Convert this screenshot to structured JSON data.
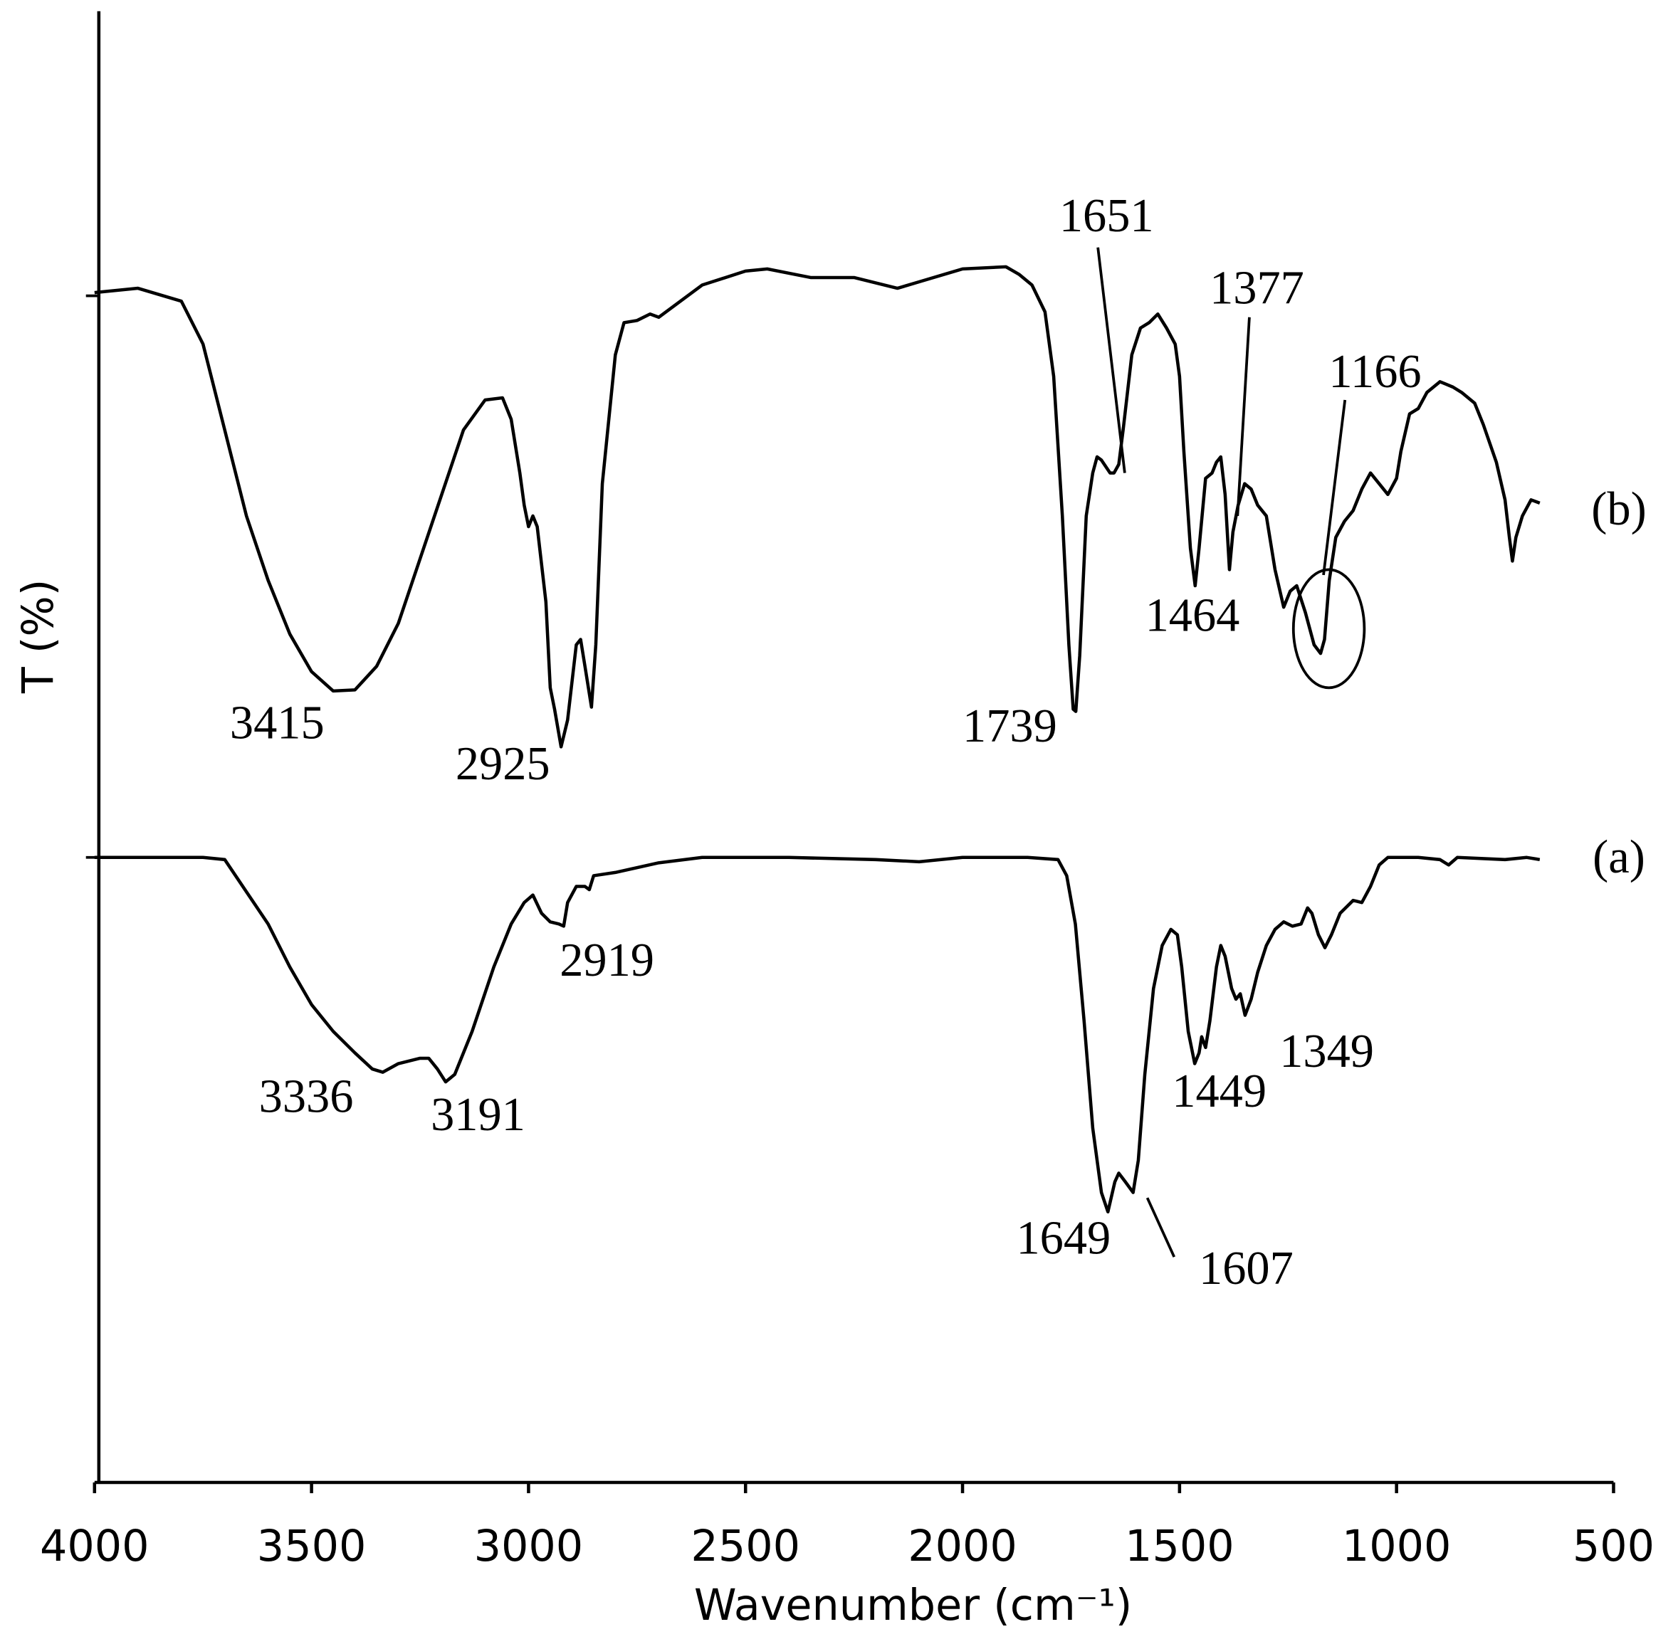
{
  "chart_data": {
    "type": "line",
    "xlabel": "Wavenumber (cm⁻¹)",
    "ylabel": "T (%)",
    "xlim": [
      4000,
      500
    ],
    "xticks": [
      4000,
      3500,
      3000,
      2500,
      2000,
      1500,
      1000,
      500
    ],
    "ylim": [
      0,
      137
    ],
    "color": "#000000",
    "series": [
      {
        "name": "(b)",
        "color": "#000000",
        "x": [
          4000,
          3900,
          3800,
          3750,
          3700,
          3650,
          3600,
          3550,
          3500,
          3450,
          3400,
          3350,
          3300,
          3250,
          3200,
          3150,
          3100,
          3060,
          3040,
          3020,
          3010,
          3000,
          2990,
          2980,
          2960,
          2950,
          2940,
          2925,
          2910,
          2890,
          2880,
          2870,
          2855,
          2845,
          2830,
          2800,
          2780,
          2750,
          2720,
          2700,
          2650,
          2600,
          2500,
          2450,
          2350,
          2250,
          2150,
          2100,
          2000,
          1900,
          1870,
          1840,
          1810,
          1790,
          1770,
          1755,
          1745,
          1739,
          1730,
          1715,
          1700,
          1690,
          1680,
          1660,
          1651,
          1640,
          1630,
          1610,
          1590,
          1570,
          1550,
          1530,
          1510,
          1500,
          1490,
          1475,
          1464,
          1455,
          1440,
          1425,
          1415,
          1405,
          1395,
          1385,
          1377,
          1365,
          1350,
          1335,
          1320,
          1300,
          1280,
          1260,
          1245,
          1230,
          1210,
          1190,
          1175,
          1166,
          1155,
          1140,
          1120,
          1100,
          1080,
          1060,
          1040,
          1020,
          1000,
          990,
          970,
          950,
          930,
          900,
          870,
          850,
          820,
          800,
          770,
          750,
          740,
          733,
          725,
          710,
          690,
          670
        ],
        "values": [
          110.8,
          111.2,
          110,
          106,
          98,
          90,
          84,
          79,
          75.5,
          73.7,
          73.8,
          76,
          80,
          86,
          92,
          98,
          100.8,
          101,
          99,
          94,
          91,
          89,
          90,
          89,
          82,
          74,
          72,
          68.5,
          71,
          78,
          78.5,
          76,
          72.2,
          78,
          93,
          105,
          108,
          108.2,
          108.8,
          108.5,
          110,
          111.5,
          112.8,
          113,
          112.2,
          112.2,
          111.2,
          111.8,
          113,
          113.2,
          112.5,
          111.5,
          109,
          103,
          90,
          78,
          72,
          71.8,
          77,
          90,
          94,
          95.5,
          95.2,
          94,
          94,
          94.8,
          98,
          105,
          107.5,
          108,
          108.8,
          107.5,
          106,
          103,
          96,
          87,
          83.5,
          87,
          93.5,
          94,
          95,
          95.5,
          92,
          85,
          88.5,
          91,
          93,
          92.5,
          91,
          90,
          85,
          81.5,
          83,
          83.5,
          81,
          78,
          77.2,
          78.5,
          84,
          88,
          89.5,
          90.5,
          92.5,
          94,
          93,
          92,
          93.5,
          96,
          99.5,
          100,
          101.5,
          102.5,
          102,
          101.5,
          100.5,
          98.5,
          95,
          91.5,
          88,
          85.8,
          88,
          90,
          91.5,
          91.2
        ]
      },
      {
        "name": "(a)",
        "color": "#000000",
        "x": [
          4000,
          3750,
          3700,
          3650,
          3600,
          3550,
          3500,
          3450,
          3400,
          3360,
          3336,
          3300,
          3250,
          3230,
          3210,
          3191,
          3170,
          3130,
          3080,
          3040,
          3010,
          2990,
          2970,
          2950,
          2930,
          2919,
          2910,
          2890,
          2870,
          2860,
          2850,
          2800,
          2700,
          2600,
          2400,
          2200,
          2100,
          2000,
          1850,
          1780,
          1760,
          1740,
          1720,
          1700,
          1680,
          1665,
          1649,
          1640,
          1625,
          1607,
          1595,
          1580,
          1560,
          1540,
          1520,
          1505,
          1495,
          1480,
          1465,
          1455,
          1449,
          1440,
          1430,
          1415,
          1405,
          1395,
          1380,
          1370,
          1360,
          1349,
          1335,
          1320,
          1300,
          1280,
          1260,
          1240,
          1220,
          1205,
          1195,
          1180,
          1165,
          1150,
          1130,
          1100,
          1080,
          1060,
          1040,
          1020,
          950,
          900,
          880,
          860,
          750,
          700,
          670
        ],
        "values": [
          58.2,
          58.2,
          58,
          55,
          52,
          48,
          44.5,
          42,
          40,
          38.5,
          38.2,
          39,
          39.5,
          39.5,
          38.5,
          37.3,
          38,
          42,
          48,
          52,
          54,
          54.7,
          53,
          52.2,
          52,
          51.8,
          54,
          55.5,
          55.5,
          55.2,
          56.5,
          56.8,
          57.7,
          58.2,
          58.2,
          58,
          57.8,
          58.2,
          58.2,
          58,
          56.5,
          52,
          43,
          33,
          27,
          25.2,
          28,
          28.8,
          28,
          27,
          30,
          38,
          46,
          50,
          51.5,
          51,
          48,
          42,
          39,
          40,
          41.5,
          40.5,
          43,
          48,
          50,
          49,
          46,
          45,
          45.5,
          43.5,
          45,
          47.5,
          50,
          51.5,
          52.2,
          51.8,
          52,
          53.5,
          53,
          51,
          49.8,
          51,
          53,
          54.2,
          54,
          55.5,
          57.5,
          58.2,
          58.2,
          58,
          57.5,
          58.2,
          58,
          58.2,
          58
        ]
      }
    ],
    "annotations": [
      "1651",
      "1377",
      "1166",
      "3415",
      "2925",
      "1739",
      "1464",
      "2919",
      "3336",
      "3191",
      "1449",
      "1349",
      "1649",
      "1607"
    ]
  }
}
